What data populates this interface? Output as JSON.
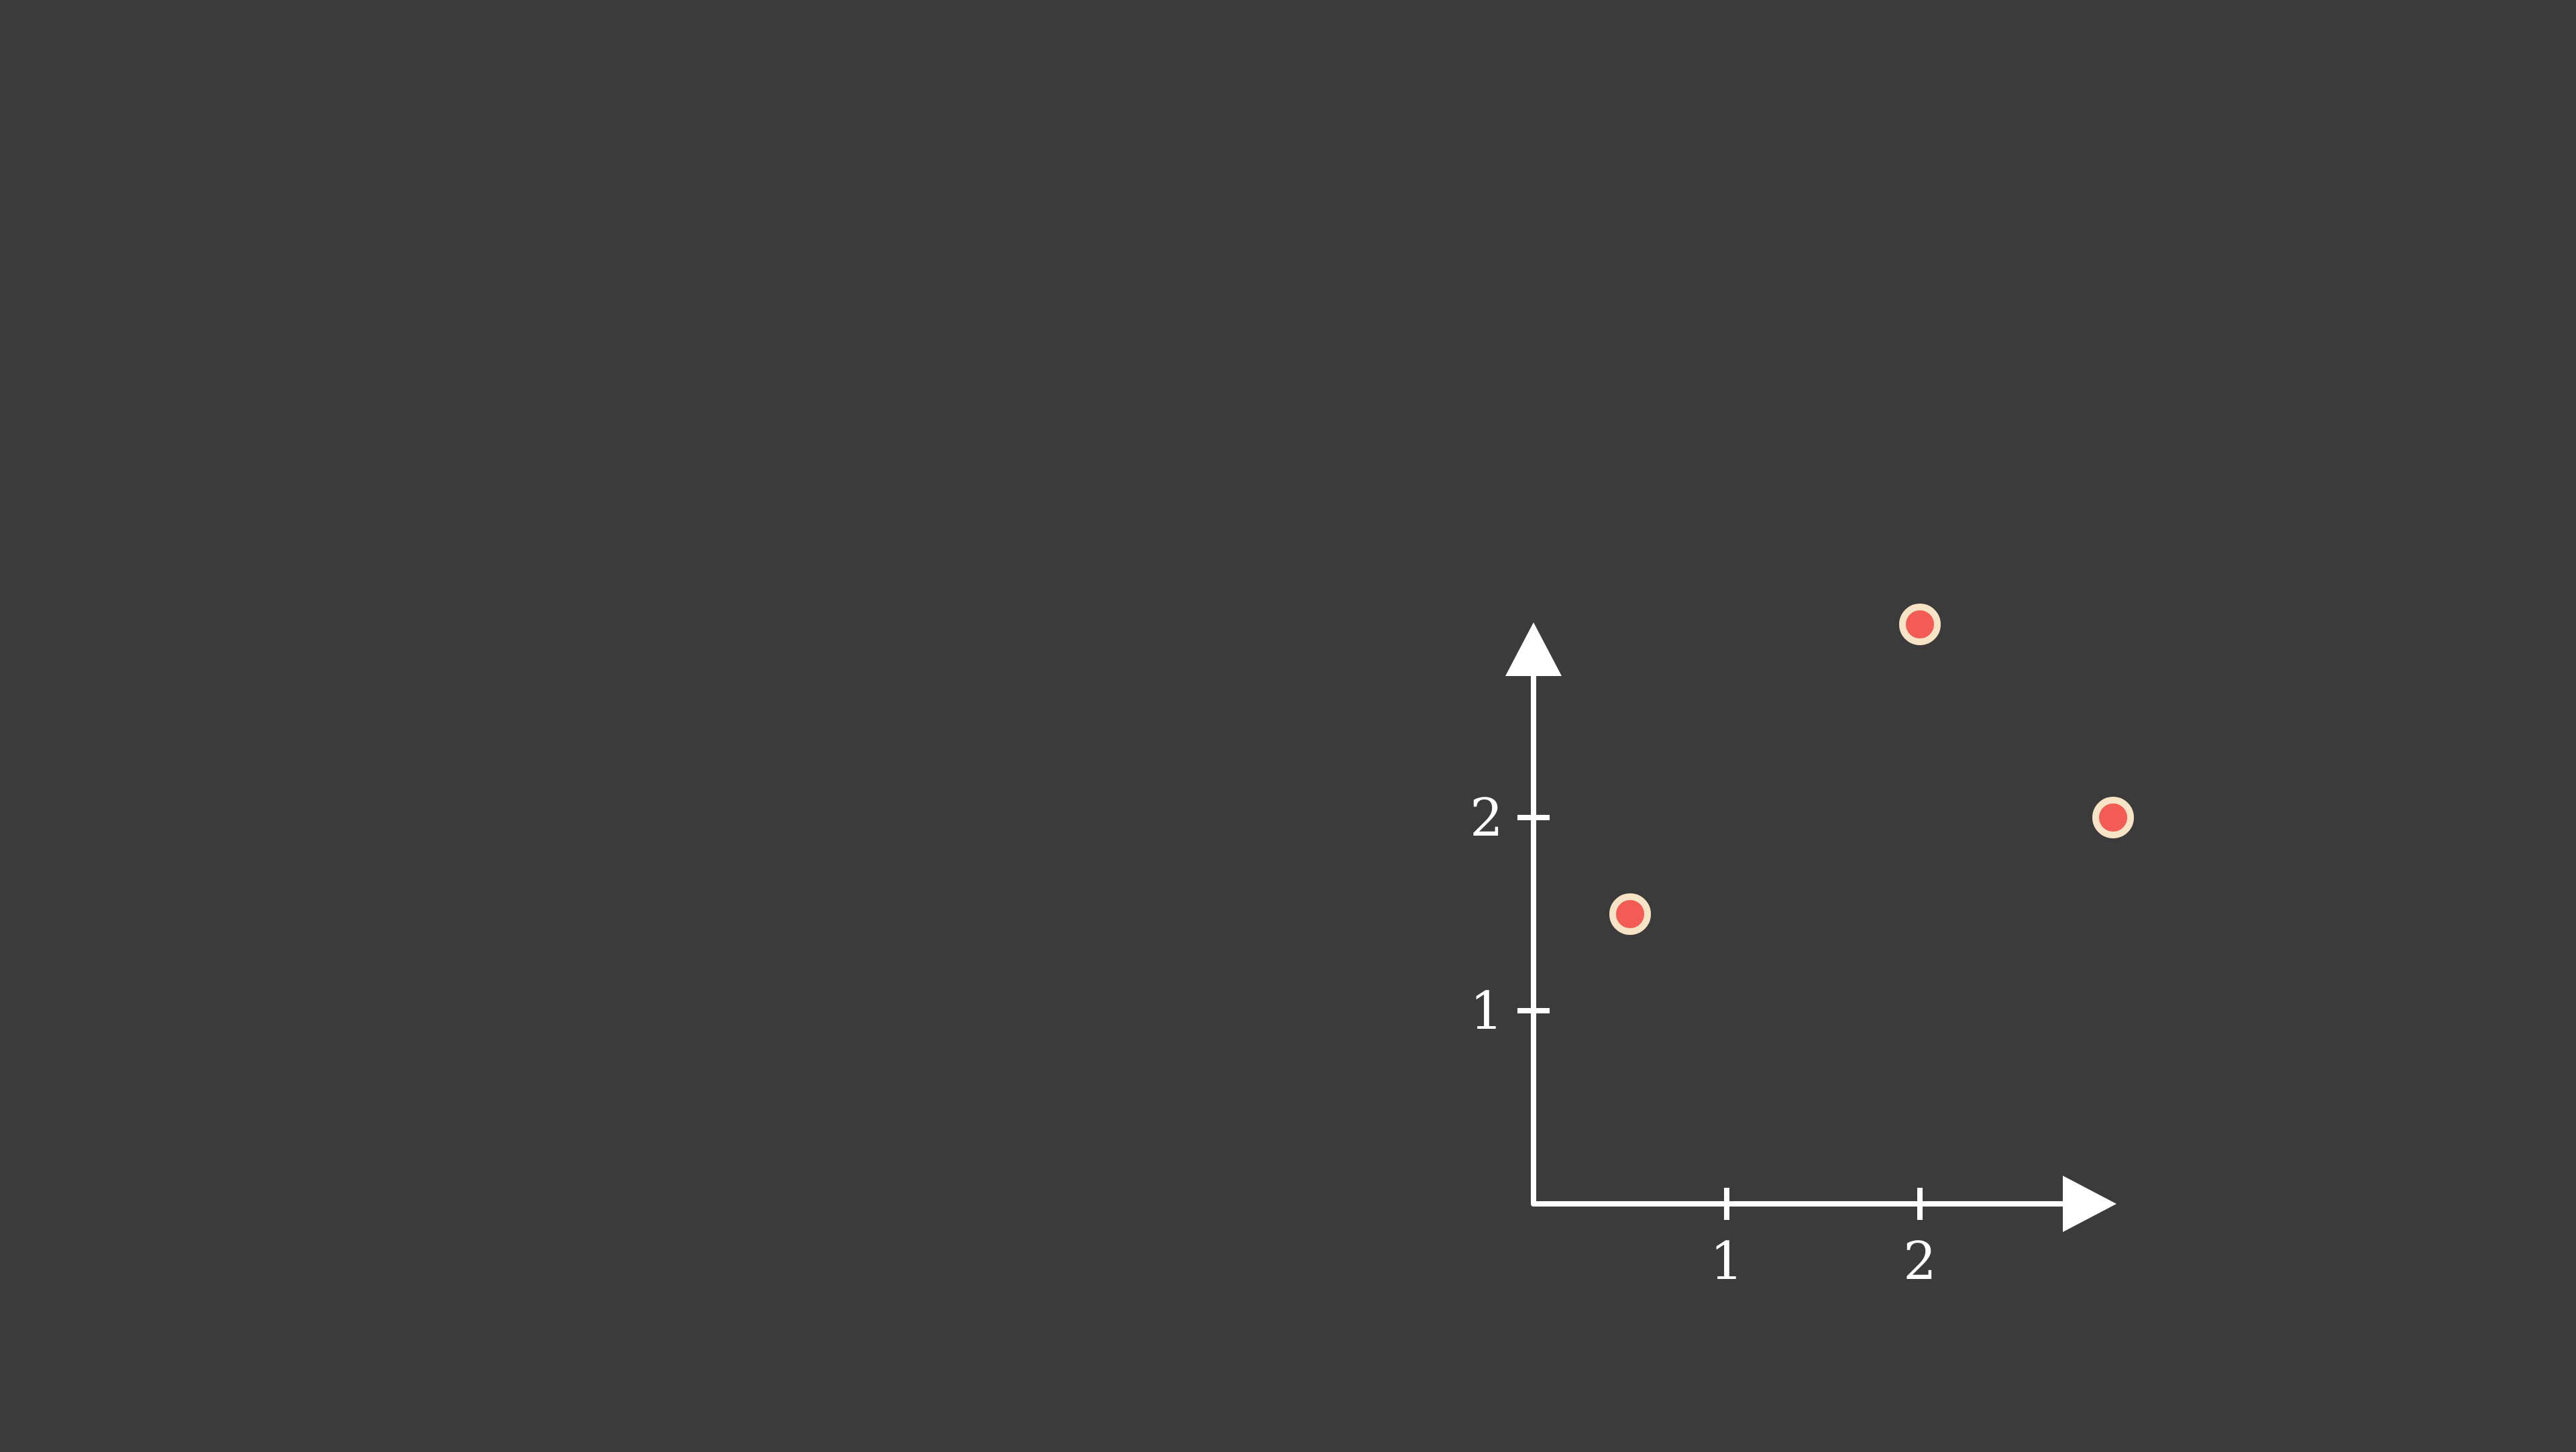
{
  "background": "#3b3b3b",
  "chart_data": {
    "type": "scatter",
    "title": "",
    "xlabel": "",
    "ylabel": "",
    "xlim": [
      0,
      3
    ],
    "ylim": [
      0,
      3
    ],
    "x_ticks": [
      {
        "value": 1,
        "label": "1"
      },
      {
        "value": 2,
        "label": "2"
      }
    ],
    "y_ticks": [
      {
        "value": 1,
        "label": "1"
      },
      {
        "value": 2,
        "label": "2"
      }
    ],
    "grid": false,
    "legend": "none",
    "points": [
      {
        "x": 0.5,
        "y": 1.5
      },
      {
        "x": 2.0,
        "y": 3.0
      },
      {
        "x": 3.0,
        "y": 2.0
      }
    ],
    "colors": {
      "axis": "#ffffff",
      "point_fill": "#f25c54",
      "point_stroke": "#f7e3c5"
    }
  }
}
